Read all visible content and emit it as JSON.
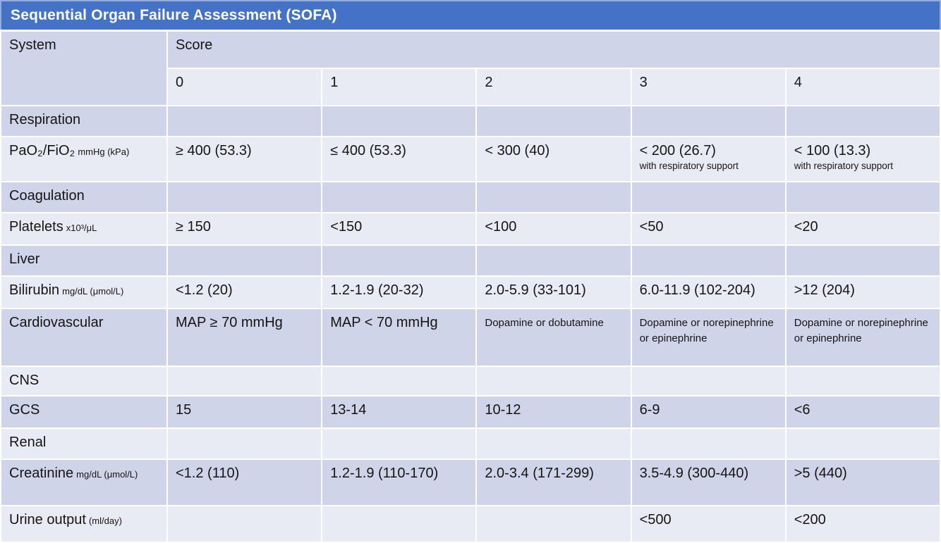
{
  "title": "Sequential Organ Failure Assessment (SOFA)",
  "colors": {
    "title_bg": "#4472C4",
    "title_border": "#96ACDC",
    "band_dark": "#CFD4E8",
    "band_light": "#E9EBF4",
    "grid_gap": "#FFFFFF",
    "title_text": "#FFFFFF",
    "body_text": "#151515"
  },
  "table": {
    "system_header": "System",
    "score_header": "Score",
    "score_columns": [
      "0",
      "1",
      "2",
      "3",
      "4"
    ],
    "rows": {
      "respiration": {
        "label": "Respiration"
      },
      "pao2": {
        "label": "PaO₂/FiO₂",
        "unit": "mmHg (kPa)",
        "values": [
          "≥ 400 (53.3)",
          "≤ 400 (53.3)",
          "< 300 (40)",
          "< 200 (26.7)",
          "< 100 (13.3)"
        ],
        "notes": [
          "",
          "",
          "",
          "with respiratory support",
          "with respiratory support"
        ]
      },
      "coagulation": {
        "label": "Coagulation"
      },
      "platelets": {
        "label": "Platelets",
        "unit": "x10³/μL",
        "values": [
          "≥ 150",
          "<150",
          "<100",
          "<50",
          "<20"
        ]
      },
      "liver": {
        "label": "Liver"
      },
      "bilirubin": {
        "label": "Bilirubin",
        "unit": "mg/dL (μmol/L)",
        "values": [
          "<1.2 (20)",
          "1.2-1.9 (20-32)",
          "2.0-5.9 (33-101)",
          "6.0-11.9 (102-204)",
          ">12 (204)"
        ]
      },
      "cardiovascular": {
        "label": "Cardiovascular",
        "values": [
          "MAP ≥ 70 mmHg",
          "MAP < 70 mmHg",
          "Dopamine or dobutamine",
          "Dopamine or norepinephrine or epinephrine",
          "Dopamine or norepinephrine or epinephrine"
        ]
      },
      "cns": {
        "label": "CNS"
      },
      "gcs": {
        "label": "GCS",
        "values": [
          "15",
          "13-14",
          "10-12",
          "6-9",
          "<6"
        ]
      },
      "renal": {
        "label": "Renal"
      },
      "creatinine": {
        "label": "Creatinine",
        "unit": "mg/dL (μmol/L)",
        "values": [
          "<1.2 (110)",
          "1.2-1.9 (110-170)",
          "2.0-3.4 (171-299)",
          "3.5-4.9 (300-440)",
          ">5 (440)"
        ]
      },
      "urine_output": {
        "label": "Urine output",
        "unit": "(ml/day)",
        "values": [
          "",
          "",
          "",
          "<500",
          "<200"
        ]
      }
    }
  }
}
